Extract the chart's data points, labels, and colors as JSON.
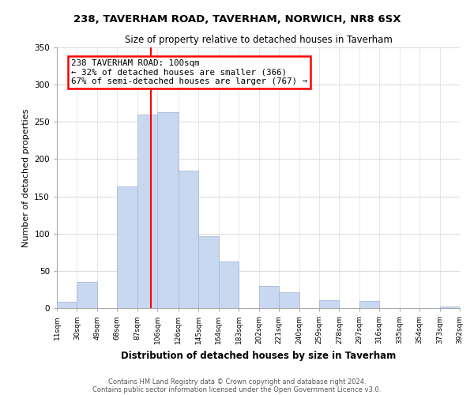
{
  "title": "238, TAVERHAM ROAD, TAVERHAM, NORWICH, NR8 6SX",
  "subtitle": "Size of property relative to detached houses in Taverham",
  "xlabel": "Distribution of detached houses by size in Taverham",
  "ylabel": "Number of detached properties",
  "bar_color": "#c8d8f0",
  "bar_edge_color": "#a8b8d8",
  "bin_edges": [
    11,
    30,
    49,
    68,
    87,
    106,
    126,
    145,
    164,
    183,
    202,
    221,
    240,
    259,
    278,
    297,
    316,
    335,
    354,
    373,
    392
  ],
  "bin_labels": [
    "11sqm",
    "30sqm",
    "49sqm",
    "68sqm",
    "87sqm",
    "106sqm",
    "126sqm",
    "145sqm",
    "164sqm",
    "183sqm",
    "202sqm",
    "221sqm",
    "240sqm",
    "259sqm",
    "278sqm",
    "297sqm",
    "316sqm",
    "335sqm",
    "354sqm",
    "373sqm",
    "392sqm"
  ],
  "bar_heights": [
    9,
    35,
    0,
    163,
    260,
    263,
    185,
    97,
    63,
    0,
    30,
    21,
    0,
    11,
    0,
    10,
    0,
    0,
    0,
    2
  ],
  "property_line_x": 100,
  "ylim": [
    0,
    350
  ],
  "annotation_line1": "238 TAVERHAM ROAD: 100sqm",
  "annotation_line2": "← 32% of detached houses are smaller (366)",
  "annotation_line3": "67% of semi-detached houses are larger (767) →",
  "footer_line1": "Contains HM Land Registry data © Crown copyright and database right 2024.",
  "footer_line2": "Contains public sector information licensed under the Open Government Licence v3.0.",
  "grid_color": "#dddddd",
  "background_color": "#ffffff"
}
